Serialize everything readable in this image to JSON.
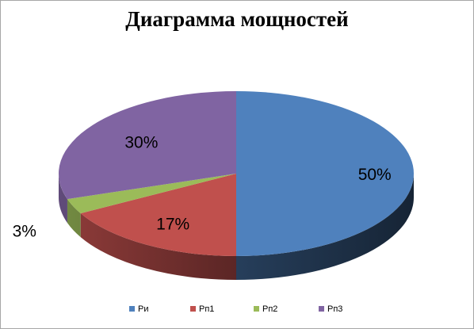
{
  "chart_data": {
    "type": "pie",
    "title": "Диаграмма мощностей",
    "categories": [
      "Ри",
      "Рп1",
      "Рп2",
      "Рп3"
    ],
    "values": [
      50,
      17,
      3,
      30
    ],
    "data_labels": [
      "50%",
      "17%",
      "3%",
      "30%"
    ],
    "colors": [
      "#4f81bd",
      "#c0504d",
      "#9bbb59",
      "#8064a2"
    ],
    "legend_position": "bottom",
    "style": "3d"
  }
}
